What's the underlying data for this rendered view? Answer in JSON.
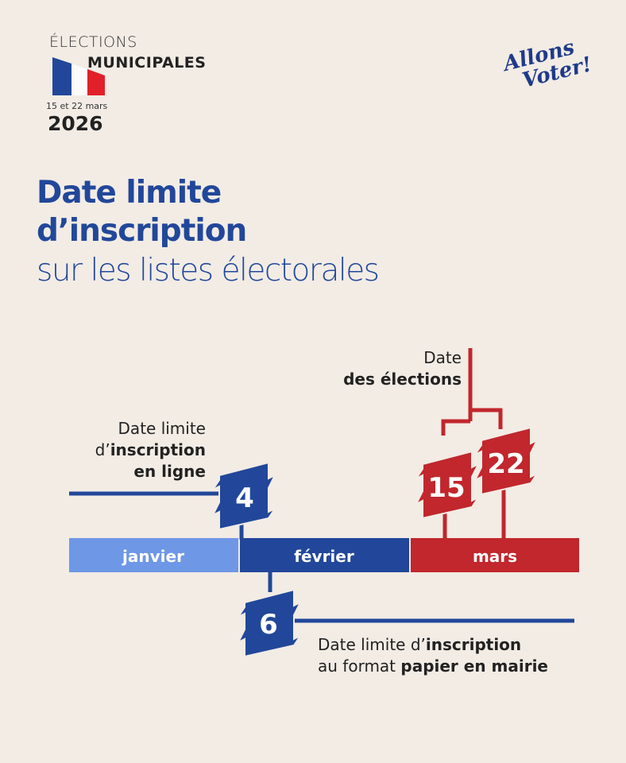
{
  "header": {
    "elections": "ÉLECTIONS",
    "municipales": "MUNICIPALES",
    "dates": "15 et 22 mars",
    "year": "2026",
    "logo_line1": "Allons",
    "logo_line2": "Voter!"
  },
  "title": {
    "line1": "Date limite",
    "line2": "d’inscription",
    "line3": "sur les listes électorales"
  },
  "colors": {
    "background": "#f2ece5",
    "blue": "#22479a",
    "light_blue": "#6e97e6",
    "red": "#c1272d"
  },
  "timeline": {
    "months": [
      "janvier",
      "février",
      "mars"
    ],
    "online": {
      "day": "4",
      "pre": "Date limite",
      "mid_pre": "d’",
      "mid_bold": "inscription",
      "bold": "en ligne"
    },
    "paper": {
      "day": "6",
      "pre": "Date limite d’",
      "bold1": "inscription",
      "pre2": "au format ",
      "bold2": "papier en mairie"
    },
    "elections": {
      "days": [
        "15",
        "22"
      ],
      "pre": "Date",
      "bold": "des élections"
    }
  }
}
